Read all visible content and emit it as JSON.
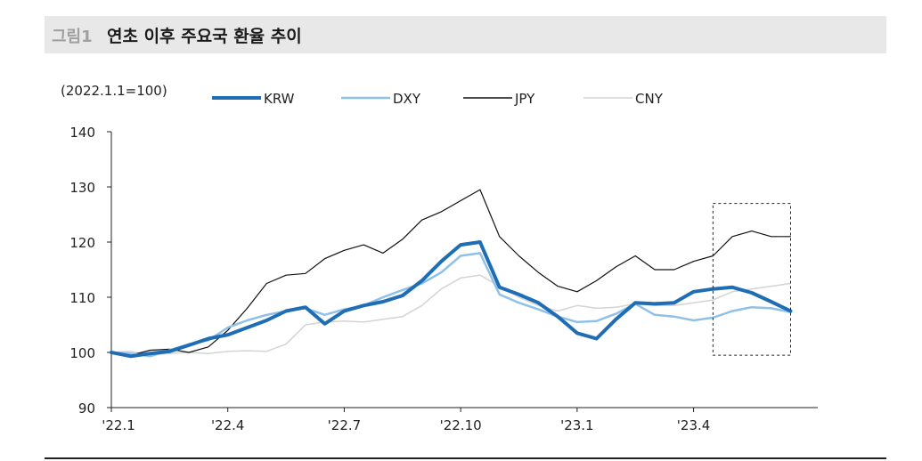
{
  "figure": {
    "label": "그림1",
    "title": "연초 이후 주요국 환율 추이"
  },
  "chart_data": {
    "type": "line",
    "ylabel": "(2022.1.1=100)",
    "ylim": [
      90,
      140
    ],
    "yticks": [
      90,
      100,
      110,
      120,
      130,
      140
    ],
    "xticks": [
      "'22.1",
      "'22.4",
      "'22.7",
      "'22.10",
      "'23.1",
      "'23.4"
    ],
    "xtick_month_index": [
      0,
      3,
      6,
      9,
      12,
      15
    ],
    "xlim_month_index": [
      0,
      18.2
    ],
    "legend_position": "top",
    "highlight_box": {
      "x_from_month_index": 15.5,
      "x_to_month_index": 17.5,
      "y_from": 99.5,
      "y_to": 127
    },
    "x_month_index": [
      0,
      0.5,
      1,
      1.5,
      2,
      2.5,
      3,
      3.5,
      4,
      4.5,
      5,
      5.5,
      6,
      6.5,
      7,
      7.5,
      8,
      8.5,
      9,
      9.5,
      10,
      10.5,
      11,
      11.5,
      12,
      12.5,
      13,
      13.5,
      14,
      14.5,
      15,
      15.5,
      16,
      16.5,
      17,
      17.5
    ],
    "series": [
      {
        "name": "KRW",
        "color": "#1f6db5",
        "width": 4,
        "values": [
          100,
          99.3,
          99.8,
          100.2,
          101.3,
          102.5,
          103.2,
          104.5,
          105.8,
          107.5,
          108.2,
          105.2,
          107.5,
          108.5,
          109.2,
          110.3,
          113.0,
          116.5,
          119.5,
          120.0,
          111.8,
          110.5,
          109.0,
          106.5,
          103.5,
          102.5,
          106.0,
          109.0,
          108.8,
          109.0,
          111.0,
          111.5,
          111.8,
          110.8,
          109.2,
          107.5
        ]
      },
      {
        "name": "DXY",
        "color": "#8fc1e8",
        "width": 2.5,
        "values": [
          100,
          99.8,
          99.3,
          100.4,
          101.5,
          102.2,
          104.5,
          105.8,
          106.8,
          107.5,
          108.0,
          106.8,
          107.8,
          108.5,
          110.0,
          111.3,
          112.5,
          114.5,
          117.5,
          118.0,
          110.5,
          109.0,
          107.8,
          106.5,
          105.5,
          105.7,
          107.0,
          108.8,
          106.8,
          106.5,
          105.8,
          106.3,
          107.5,
          108.2,
          108.0,
          107.3
        ]
      },
      {
        "name": "JPY",
        "color": "#111111",
        "width": 1.2,
        "values": [
          100,
          99.5,
          100.4,
          100.6,
          100.0,
          101.0,
          104.0,
          108.0,
          112.5,
          114.0,
          114.3,
          117.0,
          118.5,
          119.5,
          118.0,
          120.5,
          124.0,
          125.5,
          127.5,
          129.5,
          121.0,
          117.5,
          114.5,
          112.0,
          111.0,
          113.0,
          115.5,
          117.5,
          115.0,
          115.0,
          116.5,
          117.5,
          121.0,
          122.0,
          121.0,
          121.0
        ]
      },
      {
        "name": "CNY",
        "color": "#d4d4d4",
        "width": 1.5,
        "values": [
          100,
          100.2,
          99.5,
          99.8,
          100.0,
          99.8,
          100.2,
          100.3,
          100.2,
          101.5,
          105.0,
          105.5,
          105.7,
          105.5,
          106.0,
          106.5,
          108.5,
          111.5,
          113.5,
          114.0,
          112.0,
          110.0,
          108.5,
          107.5,
          108.5,
          108.0,
          108.2,
          108.8,
          108.5,
          108.5,
          109.0,
          109.5,
          111.0,
          111.5,
          112.0,
          112.5
        ]
      }
    ]
  }
}
